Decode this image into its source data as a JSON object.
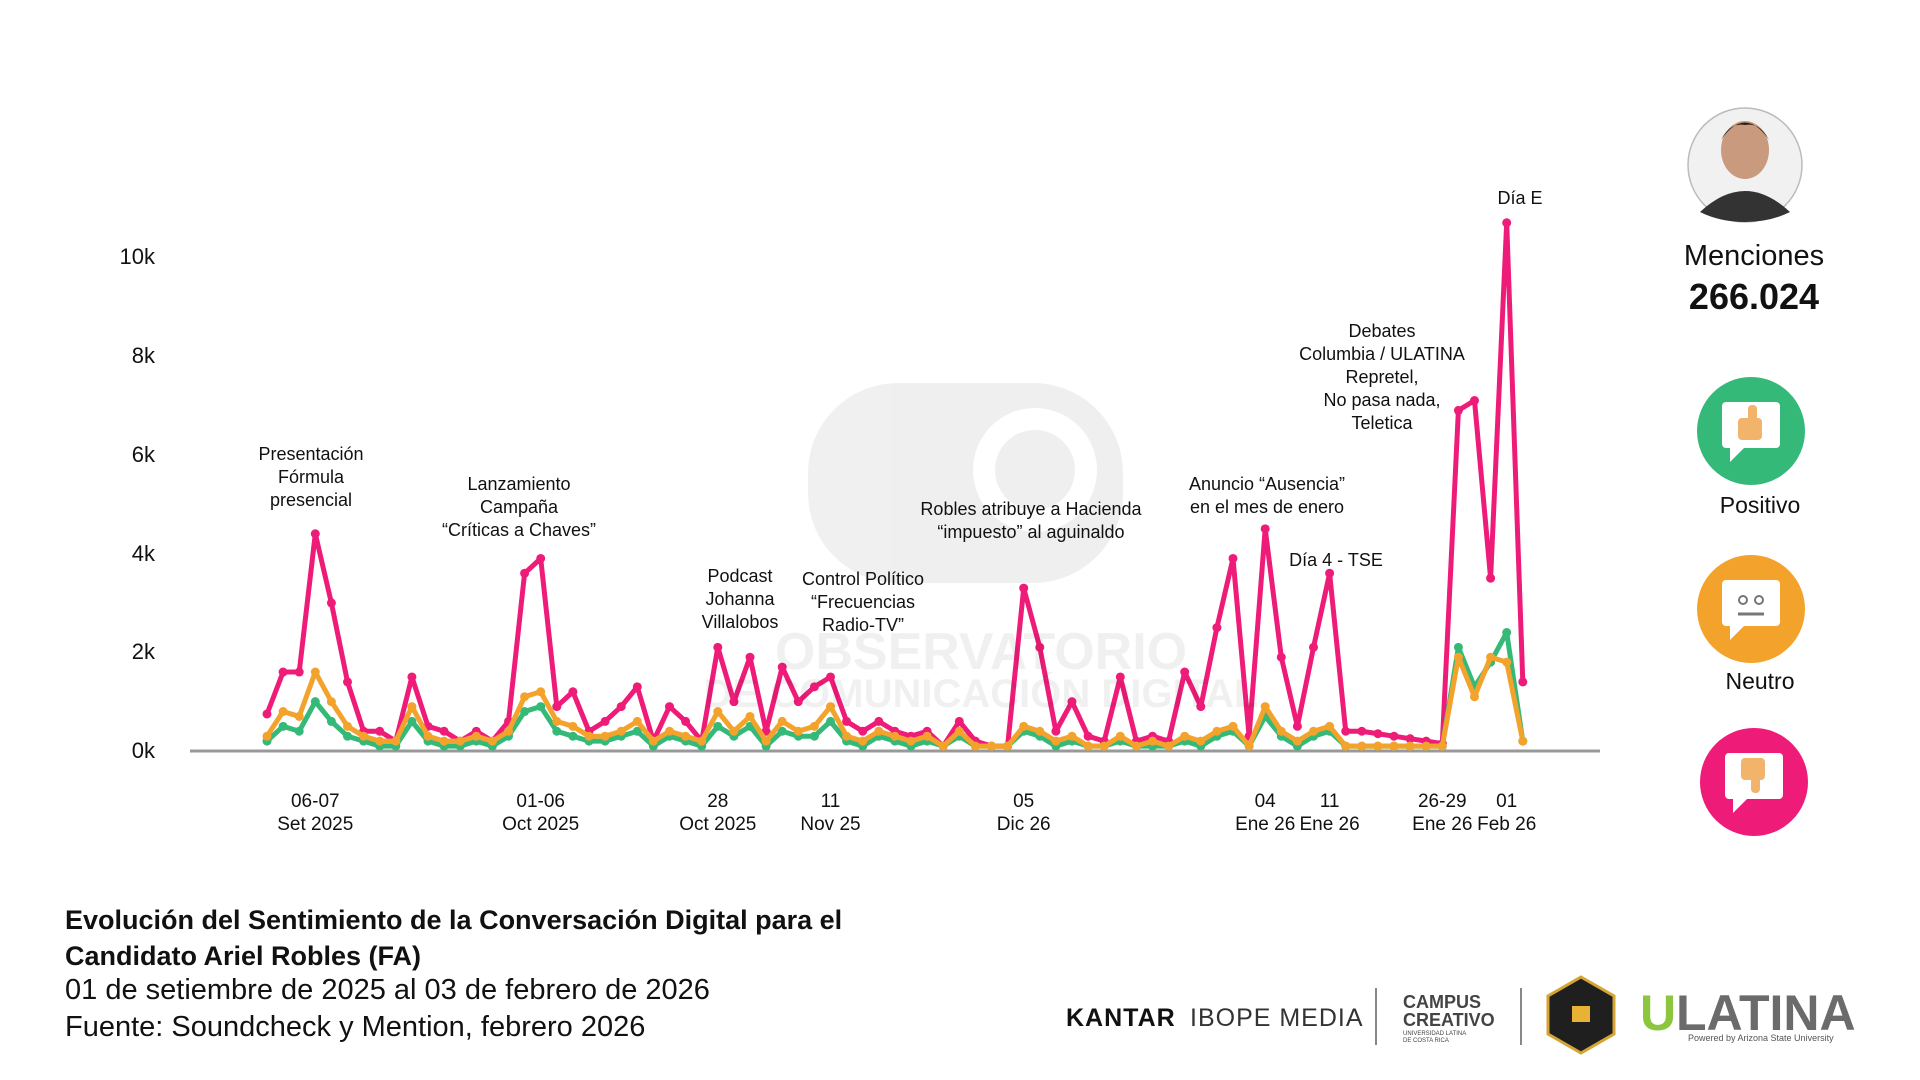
{
  "chart_data": {
    "type": "line",
    "categories": [
      null,
      null,
      null,
      "06-07\nSet 2025",
      null,
      null,
      null,
      null,
      null,
      null,
      null,
      null,
      null,
      null,
      null,
      null,
      null,
      "01-06\nOct 2025",
      null,
      null,
      null,
      null,
      null,
      null,
      null,
      null,
      null,
      null,
      "28\nOct 2025",
      null,
      null,
      null,
      null,
      null,
      null,
      "11\nNov 25",
      null,
      null,
      null,
      null,
      null,
      null,
      null,
      null,
      null,
      null,
      null,
      "05\nDic 26",
      null,
      null,
      null,
      null,
      null,
      null,
      null,
      null,
      null,
      null,
      null,
      null,
      null,
      null,
      "04\nEne 26",
      null,
      null,
      null,
      "11\nEne 26",
      null,
      null,
      null,
      null,
      null,
      null,
      "26-29\nEne 26",
      null,
      null,
      null,
      "01\nFeb 26",
      null
    ],
    "series": [
      {
        "name": "Positivo",
        "color": "#35b979",
        "values": [
          200,
          500,
          400,
          1000,
          600,
          300,
          200,
          100,
          100,
          600,
          200,
          100,
          100,
          200,
          100,
          300,
          800,
          900,
          400,
          300,
          200,
          200,
          300,
          400,
          100,
          300,
          200,
          100,
          500,
          300,
          500,
          100,
          400,
          300,
          300,
          600,
          200,
          100,
          300,
          200,
          100,
          200,
          100,
          300,
          100,
          100,
          100,
          400,
          300,
          100,
          200,
          100,
          100,
          200,
          100,
          100,
          100,
          200,
          100,
          300,
          400,
          100,
          700,
          300,
          100,
          300,
          400,
          100,
          100,
          100,
          100,
          100,
          100,
          100,
          2100,
          1300,
          1800,
          2400,
          200
        ]
      },
      {
        "name": "Neutro",
        "color": "#f3a32c",
        "values": [
          300,
          800,
          700,
          1600,
          1000,
          500,
          300,
          200,
          200,
          900,
          300,
          200,
          200,
          300,
          200,
          400,
          1100,
          1200,
          600,
          500,
          300,
          300,
          400,
          600,
          200,
          400,
          300,
          200,
          800,
          400,
          700,
          200,
          600,
          400,
          500,
          900,
          300,
          200,
          400,
          300,
          200,
          300,
          100,
          400,
          100,
          100,
          100,
          500,
          400,
          200,
          300,
          100,
          100,
          300,
          100,
          200,
          100,
          300,
          200,
          400,
          500,
          100,
          900,
          400,
          200,
          400,
          500,
          100,
          100,
          100,
          100,
          100,
          100,
          100,
          1900,
          1100,
          1900,
          1800,
          200
        ]
      },
      {
        "color": "#ee1c78",
        "values": [
          750,
          1600,
          1600,
          4400,
          3000,
          1400,
          400,
          400,
          200,
          1500,
          500,
          400,
          200,
          400,
          200,
          600,
          3600,
          3900,
          900,
          1200,
          400,
          600,
          900,
          1300,
          200,
          900,
          600,
          200,
          2100,
          1000,
          1900,
          400,
          1700,
          1000,
          1300,
          1500,
          600,
          400,
          600,
          400,
          300,
          400,
          100,
          600,
          200,
          100,
          100,
          3300,
          2100,
          400,
          1000,
          300,
          200,
          1500,
          200,
          300,
          200,
          1600,
          900,
          2500,
          3900,
          300,
          4500,
          1900,
          500,
          2100,
          3600,
          400,
          400,
          350,
          300,
          250,
          200,
          150,
          6900,
          7100,
          3500,
          10700,
          1400
        ]
      }
    ],
    "ylim": [
      0,
      11000
    ],
    "yticks": [
      {
        "value": 0,
        "label": "0k"
      },
      {
        "value": 2000,
        "label": "2k"
      },
      {
        "value": 4000,
        "label": "4k"
      },
      {
        "value": 6000,
        "label": "6k"
      },
      {
        "value": 8000,
        "label": "8k"
      },
      {
        "value": 10000,
        "label": "10k"
      }
    ],
    "grid": false,
    "annotations": [
      "Presentación\nFórmula\npresencial",
      "Lanzamiento\nCampaña\n“Críticas a Chaves”",
      "Podcast\nJohanna\nVillalobos",
      "Control Político\n“Frecuencias\nRadio-TV”",
      "Robles atribuye a Hacienda\n“impuesto” al aguinaldo",
      "Anuncio “Ausencia”\nen el mes de enero",
      "Día 4 - TSE",
      "Debates\nColumbia / ULATINA\nRepretel,\nNo pasa nada,\nTeletica",
      "Día E"
    ]
  },
  "summary": {
    "label": "Menciones",
    "value": "266.024"
  },
  "footer": {
    "title": "Evolución del Sentimiento de la Conversación Digital para el\nCandidato Ariel Robles (FA)",
    "period": "01 de setiembre de 2025 al 03 de febrero de 2026",
    "source": "Fuente: Soundcheck y Mention, febrero 2026"
  },
  "logos": {
    "kantar": "KANTAR",
    "ibope": "IBOPE MEDIA",
    "campus": "CAMPUS\nCREATIVO",
    "campus_sub": "UNIVERSIDAD LATINA\nDE COSTA RICA",
    "ulatina_u": "U",
    "ulatina_rest": "LATINA",
    "ulatina_sub": "Powered by Arizona State University"
  },
  "watermark": [
    "OBSERVATORIO",
    "DE COMUNICACIÓN DIGITAL"
  ]
}
